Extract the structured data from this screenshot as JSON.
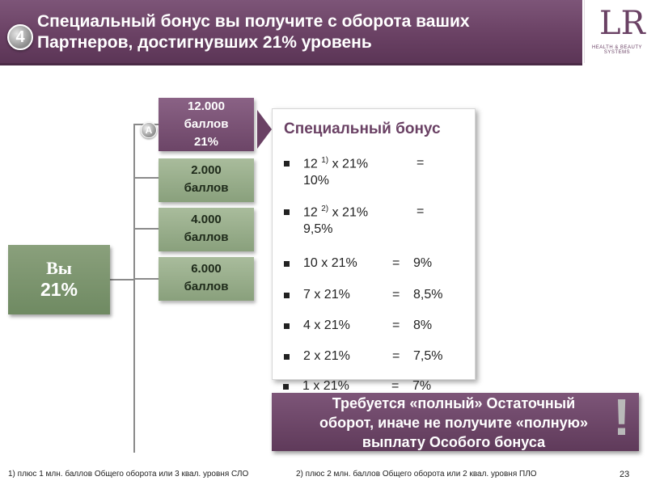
{
  "header": {
    "step": "4",
    "title_line1": "Специальный бонус вы получите с оборота ваших",
    "title_line2": "Партнеров, достигнувших 21% уровень",
    "logo_mark": "LR",
    "logo_text": "HEALTH & BEAUTY SYSTEMS"
  },
  "you": {
    "label": "Вы",
    "percent": "21%"
  },
  "partners": [
    {
      "badge": "A",
      "line1": "12.000",
      "line2": "баллов",
      "line3": "21%"
    },
    {
      "line1": "2.000",
      "line2": "баллов"
    },
    {
      "line1": "4.000",
      "line2": "баллов"
    },
    {
      "line1": "6.000",
      "line2": "баллов"
    }
  ],
  "panel": {
    "title": "Специальный бонус",
    "rows": [
      {
        "formula_pre": "12 ",
        "sup": "1)",
        "formula_post": " x 21%",
        "eq": "=",
        "result": "10%"
      },
      {
        "formula_pre": "12 ",
        "sup": "2)",
        "formula_post": " x 21%",
        "eq": "=",
        "result": "9,5%"
      },
      {
        "formula": "10 x 21%",
        "eq": "=",
        "result": "9%"
      },
      {
        "formula": "7 x 21%",
        "eq": "=",
        "result": "8,5%"
      },
      {
        "formula": "4 x 21%",
        "eq": "=",
        "result": "8%"
      },
      {
        "formula": "2 x 21%",
        "eq": "=",
        "result": "7,5%"
      },
      {
        "formula": "1 x 21%",
        "eq": "=",
        "result": "7%"
      }
    ]
  },
  "requirement": {
    "line1": "Требуется «полный» Остаточный",
    "line2": "оборот, иначе не получите «полную»",
    "line3": "выплату Особого бонуса",
    "exclamation": "!"
  },
  "footer": {
    "note1": "1)  плюс 1 млн. баллов Общего оборота или 3 квал. уровня СЛО",
    "note2": "2)  плюс 2 млн. баллов Общего оборота или 2 квал. уровня ПЛО",
    "page": "23"
  }
}
